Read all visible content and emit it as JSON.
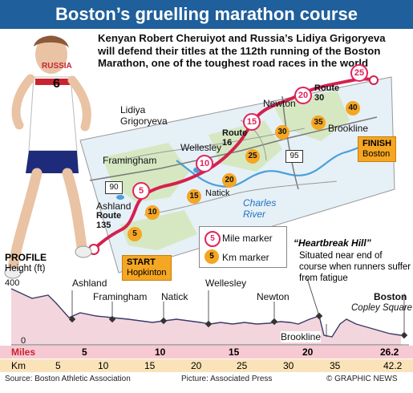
{
  "header": {
    "title": "Boston’s gruelling marathon course"
  },
  "intro": "Kenyan Robert Cheruiyot and Russia’s Lidiya Grigoryeva will defend their titles at the 112th running of the Boston Marathon, one of the toughest road races in the world",
  "runner": {
    "bib_country": "RUSSIA",
    "bib_number": "6"
  },
  "map": {
    "runner_name": "Lidiya Grigoryeva",
    "towns": {
      "framingham": "Framingham",
      "ashland": "Ashland",
      "wellesley": "Wellesley",
      "natick": "Natick",
      "newton": "Newton",
      "brookline": "Brookline"
    },
    "river": "Charles River",
    "routes": {
      "r135": "Route 135",
      "r16": "Route 16",
      "r30": "Route 30"
    },
    "interstates": {
      "i90": "90",
      "i95": "95"
    },
    "mile_markers": [
      "5",
      "10",
      "15",
      "20",
      "25"
    ],
    "km_markers": [
      "5",
      "10",
      "15",
      "20",
      "25",
      "30",
      "35",
      "40"
    ],
    "start": {
      "label": "START",
      "place": "Hopkinton"
    },
    "finish": {
      "label": "FINISH",
      "place": "Boston"
    }
  },
  "legend": {
    "mile": "Mile marker",
    "km": "Km marker",
    "mile_symbol": "5",
    "km_symbol": "5"
  },
  "heartbreak": {
    "title": "“Heartbreak Hill”",
    "text": "Situated near end of course when runners suffer from fatigue"
  },
  "profile": {
    "title": "PROFILE",
    "subtitle": "Height (ft)",
    "y_max": "400",
    "y_min": "0",
    "labels": {
      "ashland": "Ashland",
      "framingham": "Framingham",
      "natick": "Natick",
      "wellesley": "Wellesley",
      "newton": "Newton",
      "boston": "Boston",
      "copley": "Copley Square",
      "brookline": "Brookline"
    }
  },
  "scale": {
    "miles_label": "Miles",
    "miles": [
      "5",
      "10",
      "15",
      "20",
      "26.2"
    ],
    "km_label": "Km",
    "km": [
      "5",
      "10",
      "15",
      "20",
      "25",
      "30",
      "35",
      "42.2"
    ]
  },
  "footer": {
    "source": "Source: Boston Athletic Association",
    "picture": "Picture: Associated Press",
    "credit": "© GRAPHIC NEWS"
  },
  "colors": {
    "header": "#1f5f9b",
    "route": "#d3214f",
    "mile_marker": "#e0245e",
    "km_marker": "#f5a623",
    "map_bg": "#e6f0f7",
    "map_green": "#d6e8c2",
    "water": "#4aa0d8",
    "profile_fill": "#f3d6dd",
    "profile_line": "#3a3a6a"
  }
}
